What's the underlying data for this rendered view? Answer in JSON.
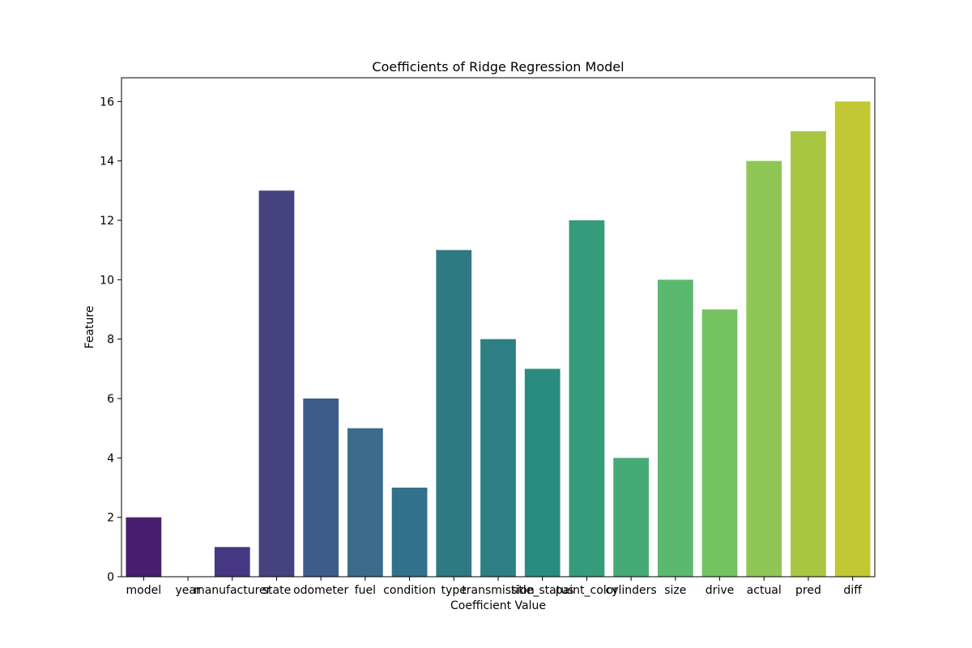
{
  "chart_data": {
    "type": "bar",
    "title": "Coefficients of Ridge Regression Model",
    "xlabel": "Coefficient Value",
    "ylabel": "Feature",
    "categories": [
      "model",
      "year",
      "manufacturer",
      "state",
      "odometer",
      "fuel",
      "condition",
      "type",
      "transmission",
      "title_status",
      "paint_color",
      "cylinders",
      "size",
      "drive",
      "actual",
      "pred",
      "diff"
    ],
    "values": [
      2,
      0,
      1,
      13,
      6,
      5,
      3,
      11,
      8,
      7,
      12,
      4,
      10,
      9,
      14,
      15,
      16
    ],
    "colors": [
      "#481d6f",
      "#472c7a",
      "#453781",
      "#46427f",
      "#3f5b89",
      "#3b6b8a",
      "#33708b",
      "#2e7a83",
      "#2e7f84",
      "#2a8c80",
      "#369b7b",
      "#46aa74",
      "#5bb96f",
      "#74c262",
      "#90c655",
      "#a8c642",
      "#c1c833"
    ],
    "ylim": [
      0,
      16.8
    ],
    "yticks": [
      0,
      2,
      4,
      6,
      8,
      10,
      12,
      14,
      16
    ],
    "grid": false
  }
}
